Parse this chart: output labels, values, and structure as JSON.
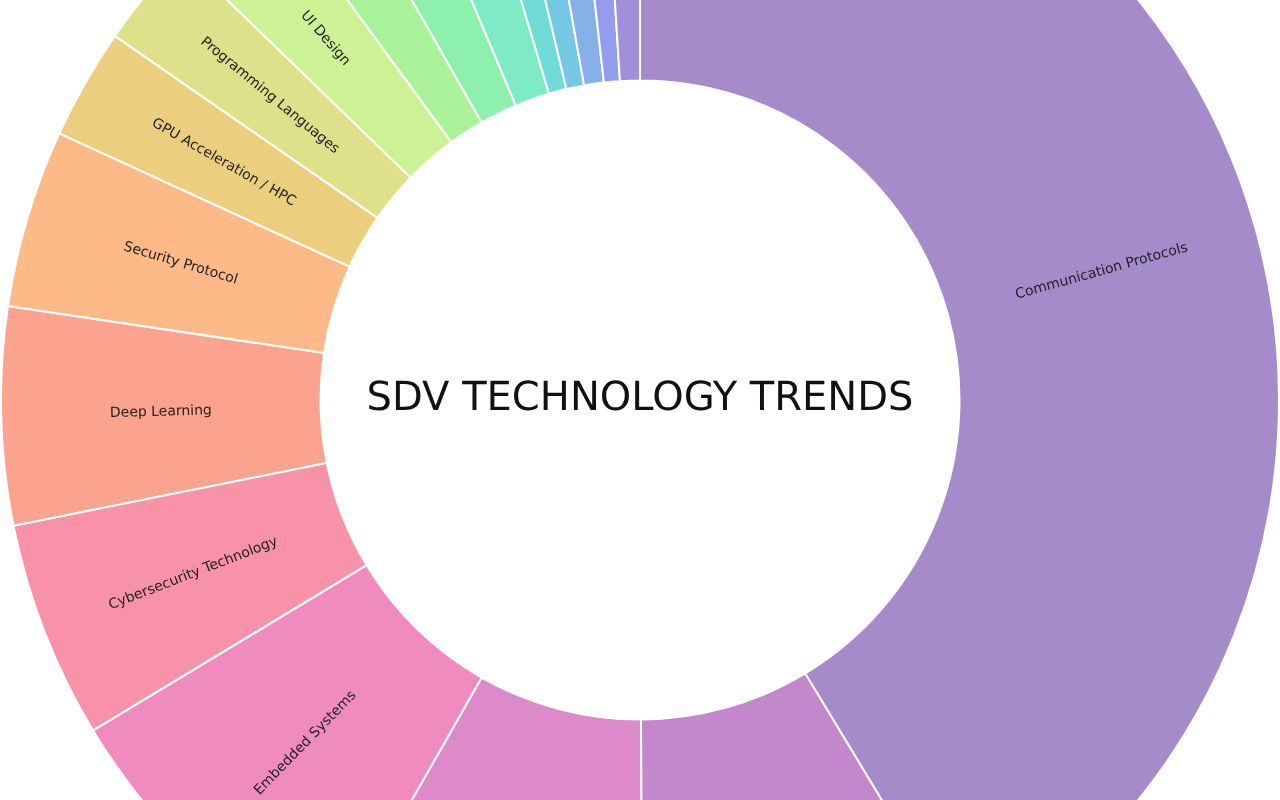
{
  "chart_data": {
    "type": "donut",
    "title": "SDV TECHNOLOGY TRENDS",
    "categories": [
      "Communication Protocols",
      null,
      null,
      "Embedded Systems",
      "Cybersecurity Technology",
      "Deep Learning",
      "Security Protocol",
      "GPU Acceleration / HPC",
      "Programming Languages",
      "UI Design",
      null,
      null,
      null,
      null,
      null,
      null,
      null,
      null
    ],
    "values": [
      41.35,
      8.6,
      8.3,
      8.1,
      5.5,
      5.5,
      4.5,
      2.8,
      2.6,
      2.7,
      1.8,
      1.9,
      1.75,
      0.9,
      0.9,
      1.0,
      0.8,
      1.0
    ],
    "colors": [
      "#a68bcb",
      "#c387cc",
      "#dc8ac9",
      "#f08bbf",
      "#f792a8",
      "#fba38e",
      "#fdb987",
      "#ecce7f",
      "#dfe08a",
      "#cdf195",
      "#a9f29a",
      "#8ef0ad",
      "#7eeac6",
      "#6fdcd8",
      "#74c8e4",
      "#86b0e8",
      "#949ded",
      "#a08fd9"
    ]
  }
}
